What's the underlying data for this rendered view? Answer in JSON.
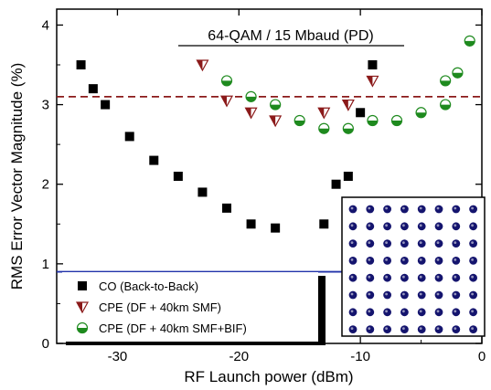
{
  "chart_data": {
    "type": "scatter",
    "title": "64-QAM / 15 Mbaud (PD)",
    "xlabel": "RF Launch power (dBm)",
    "ylabel": "RMS Error Vector Magnitude (%)",
    "xlim": [
      -35,
      0
    ],
    "ylim": [
      0,
      4.2
    ],
    "x_ticks": [
      -30,
      -20,
      -10,
      0
    ],
    "x_tick_labels": [
      "-30",
      "-20",
      "-10",
      "0"
    ],
    "y_ticks": [
      0,
      1,
      2,
      3,
      4
    ],
    "y_tick_labels": [
      "0",
      "1",
      "2",
      "3",
      "4"
    ],
    "grid": false,
    "legend_position": "bottom-left",
    "series": [
      {
        "name": "CO (Back-to-Back)",
        "marker": "square",
        "color": "#000000",
        "x": [
          -33,
          -32,
          -31,
          -29,
          -27,
          -25,
          -23,
          -21,
          -19,
          -17,
          -13,
          -12,
          -11,
          -10,
          -9
        ],
        "y": [
          3.5,
          3.2,
          3.0,
          2.6,
          2.3,
          2.1,
          1.9,
          1.7,
          1.5,
          1.45,
          1.5,
          2.0,
          2.1,
          2.9,
          3.5
        ]
      },
      {
        "name": "CPE (DF + 40km SMF)",
        "marker": "half-triangle-down",
        "color": "#8b1a1a",
        "x": [
          -23,
          -21,
          -19,
          -17,
          -13,
          -11,
          -9
        ],
        "y": [
          3.5,
          3.05,
          2.9,
          2.8,
          2.9,
          3.0,
          3.3
        ]
      },
      {
        "name": "CPE (DF + 40km SMF+BIF)",
        "marker": "half-circle",
        "color": "#1e8a1e",
        "x": [
          -21,
          -19,
          -17,
          -15,
          -13,
          -11,
          -9,
          -7,
          -5,
          -3,
          -3,
          -2,
          -1
        ],
        "y": [
          3.3,
          3.1,
          3.0,
          2.8,
          2.7,
          2.7,
          2.8,
          2.8,
          2.9,
          3.0,
          3.3,
          3.4,
          3.8
        ]
      }
    ],
    "reference_lines": [
      {
        "orientation": "horizontal",
        "y": 3.1,
        "style": "dashed",
        "color": "#8b1a1a"
      },
      {
        "orientation": "horizontal",
        "y": 0.9,
        "style": "solid",
        "color": "#2233aa"
      }
    ],
    "inset": {
      "content": "constellation-diagram",
      "grid_size": 8,
      "dot_color": "#14146e",
      "position": "bottom-right"
    }
  }
}
